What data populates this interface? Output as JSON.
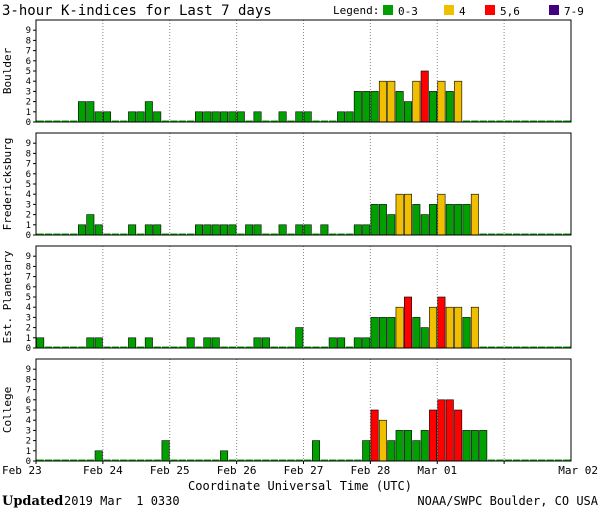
{
  "chart_data": {
    "type": "bar",
    "title": "3-hour K-indices for Last 7 days",
    "legend": {
      "label": "Legend:",
      "entries": [
        {
          "label": "0-3",
          "color": "#00a000"
        },
        {
          "label": "4",
          "color": "#f0c000"
        },
        {
          "label": "5,6",
          "color": "#ff0000"
        },
        {
          "label": "7-9",
          "color": "#400080"
        }
      ],
      "placement": "top-right"
    },
    "ylim": [
      0,
      9
    ],
    "yticks": [
      "0",
      "1",
      "2",
      "3",
      "4",
      "5",
      "6",
      "7",
      "8",
      "9"
    ],
    "xlabel": "Coordinate Universal Time (UTC)",
    "xtick_labels": [
      "Feb 23",
      "Feb 24",
      "Feb 25",
      "Feb 26",
      "Feb 27",
      "Feb 28",
      "Mar 01",
      "Mar 02"
    ],
    "intervals_per_day": 8,
    "panels": [
      {
        "name": "Boulder",
        "values": [
          0,
          0,
          0,
          0,
          0,
          2,
          2,
          1,
          1,
          0,
          0,
          1,
          1,
          2,
          1,
          0,
          0,
          0,
          0,
          1,
          1,
          1,
          1,
          1,
          1,
          0,
          1,
          0,
          0,
          1,
          0,
          1,
          1,
          0,
          0,
          0,
          1,
          1,
          3,
          3,
          3,
          4,
          4,
          3,
          2,
          4,
          5,
          3,
          4,
          3,
          4,
          0,
          0,
          0,
          0,
          0,
          0,
          0,
          0,
          0,
          0,
          0,
          0,
          0
        ]
      },
      {
        "name": "Fredericksburg",
        "values": [
          0,
          0,
          0,
          0,
          0,
          1,
          2,
          1,
          0,
          0,
          0,
          1,
          0,
          1,
          1,
          0,
          0,
          0,
          0,
          1,
          1,
          1,
          1,
          1,
          0,
          1,
          1,
          0,
          0,
          1,
          0,
          1,
          1,
          0,
          1,
          0,
          0,
          0,
          1,
          1,
          3,
          3,
          2,
          4,
          4,
          3,
          2,
          3,
          4,
          3,
          3,
          3,
          4,
          0,
          0,
          0,
          0,
          0,
          0,
          0,
          0,
          0,
          0,
          0
        ]
      },
      {
        "name": "Est. Planetary",
        "values": [
          1,
          0,
          0,
          0,
          0,
          0,
          1,
          1,
          0,
          0,
          0,
          1,
          0,
          1,
          0,
          0,
          0,
          0,
          1,
          0,
          1,
          1,
          0,
          0,
          0,
          0,
          1,
          1,
          0,
          0,
          0,
          2,
          0,
          0,
          0,
          1,
          1,
          0,
          1,
          1,
          3,
          3,
          3,
          4,
          5,
          3,
          2,
          4,
          5,
          4,
          4,
          3,
          4,
          0,
          0,
          0,
          0,
          0,
          0,
          0,
          0,
          0,
          0,
          0
        ]
      },
      {
        "name": "College",
        "values": [
          0,
          0,
          0,
          0,
          0,
          0,
          0,
          1,
          0,
          0,
          0,
          0,
          0,
          0,
          0,
          2,
          0,
          0,
          0,
          0,
          0,
          0,
          1,
          0,
          0,
          0,
          0,
          0,
          0,
          0,
          0,
          0,
          0,
          2,
          0,
          0,
          0,
          0,
          0,
          2,
          5,
          4,
          2,
          3,
          3,
          2,
          3,
          5,
          6,
          6,
          5,
          3,
          3,
          3,
          0,
          0,
          0,
          0,
          0,
          0,
          0,
          0,
          0,
          0
        ]
      }
    ]
  },
  "footer": {
    "updated_label": "Updated",
    "updated_value": "2019 Mar  1 0330",
    "source": "NOAA/SWPC Boulder, CO USA"
  }
}
